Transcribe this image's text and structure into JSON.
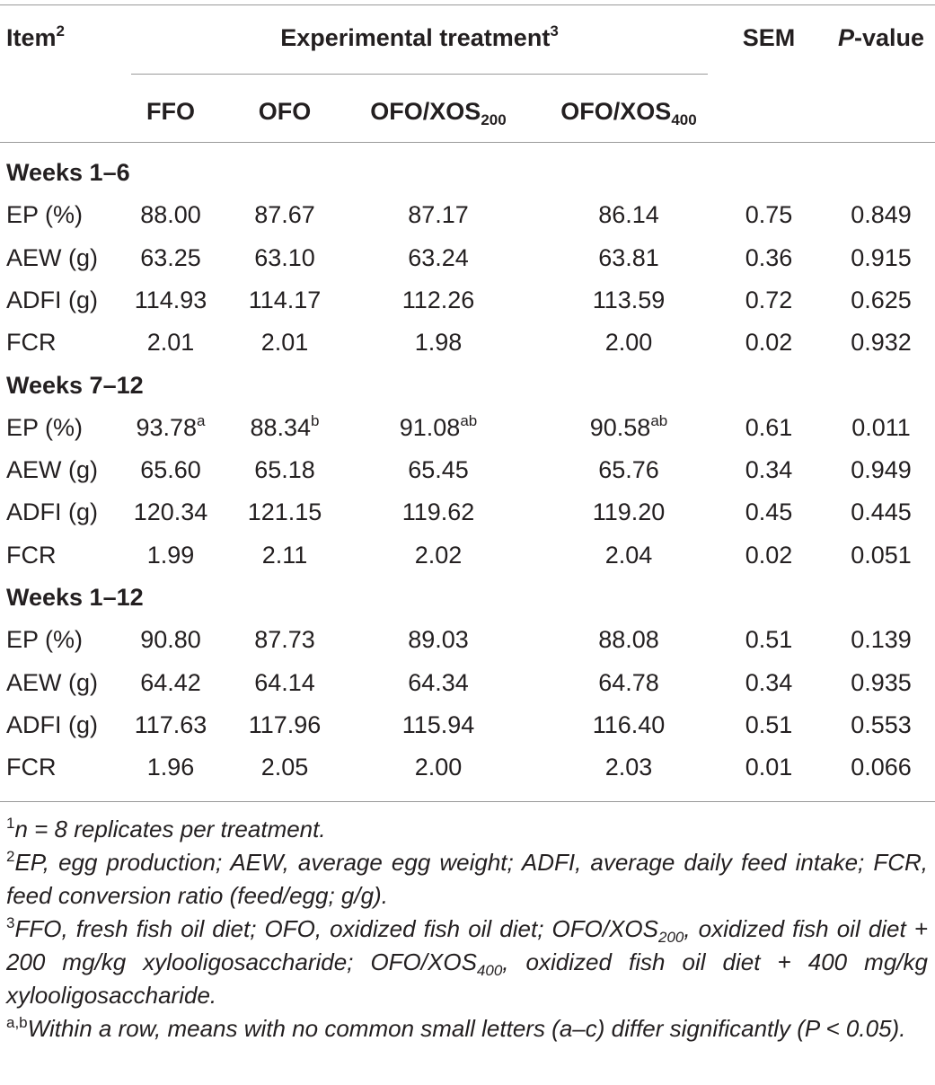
{
  "header": {
    "item_label": "Item",
    "item_sup": "2",
    "group_label": "Experimental treatment",
    "group_sup": "3",
    "sem_label": "SEM",
    "pvalue_italic": "P",
    "pvalue_rest": "-value",
    "treatments": [
      {
        "main": "FFO",
        "sub": ""
      },
      {
        "main": "OFO",
        "sub": ""
      },
      {
        "main": "OFO/XOS",
        "sub": "200"
      },
      {
        "main": "OFO/XOS",
        "sub": "400"
      }
    ]
  },
  "sections": [
    {
      "title": "Weeks 1–6",
      "rows": [
        {
          "item": "EP (%)",
          "values": [
            "88.00",
            "87.67",
            "87.17",
            "86.14"
          ],
          "sups": [
            "",
            "",
            "",
            ""
          ],
          "sem": "0.75",
          "p": "0.849"
        },
        {
          "item": "AEW (g)",
          "values": [
            "63.25",
            "63.10",
            "63.24",
            "63.81"
          ],
          "sups": [
            "",
            "",
            "",
            ""
          ],
          "sem": "0.36",
          "p": "0.915"
        },
        {
          "item": "ADFI (g)",
          "values": [
            "114.93",
            "114.17",
            "112.26",
            "113.59"
          ],
          "sups": [
            "",
            "",
            "",
            ""
          ],
          "sem": "0.72",
          "p": "0.625"
        },
        {
          "item": "FCR",
          "values": [
            "2.01",
            "2.01",
            "1.98",
            "2.00"
          ],
          "sups": [
            "",
            "",
            "",
            ""
          ],
          "sem": "0.02",
          "p": "0.932"
        }
      ]
    },
    {
      "title": "Weeks 7–12",
      "rows": [
        {
          "item": "EP (%)",
          "values": [
            "93.78",
            "88.34",
            "91.08",
            "90.58"
          ],
          "sups": [
            "a",
            "b",
            "ab",
            "ab"
          ],
          "sem": "0.61",
          "p": "0.011"
        },
        {
          "item": "AEW (g)",
          "values": [
            "65.60",
            "65.18",
            "65.45",
            "65.76"
          ],
          "sups": [
            "",
            "",
            "",
            ""
          ],
          "sem": "0.34",
          "p": "0.949"
        },
        {
          "item": "ADFI (g)",
          "values": [
            "120.34",
            "121.15",
            "119.62",
            "119.20"
          ],
          "sups": [
            "",
            "",
            "",
            ""
          ],
          "sem": "0.45",
          "p": "0.445"
        },
        {
          "item": "FCR",
          "values": [
            "1.99",
            "2.11",
            "2.02",
            "2.04"
          ],
          "sups": [
            "",
            "",
            "",
            ""
          ],
          "sem": "0.02",
          "p": "0.051"
        }
      ]
    },
    {
      "title": "Weeks 1–12",
      "rows": [
        {
          "item": "EP (%)",
          "values": [
            "90.80",
            "87.73",
            "89.03",
            "88.08"
          ],
          "sups": [
            "",
            "",
            "",
            ""
          ],
          "sem": "0.51",
          "p": "0.139"
        },
        {
          "item": "AEW (g)",
          "values": [
            "64.42",
            "64.14",
            "64.34",
            "64.78"
          ],
          "sups": [
            "",
            "",
            "",
            ""
          ],
          "sem": "0.34",
          "p": "0.935"
        },
        {
          "item": "ADFI (g)",
          "values": [
            "117.63",
            "117.96",
            "115.94",
            "116.40"
          ],
          "sups": [
            "",
            "",
            "",
            ""
          ],
          "sem": "0.51",
          "p": "0.553"
        },
        {
          "item": "FCR",
          "values": [
            "1.96",
            "2.05",
            "2.00",
            "2.03"
          ],
          "sups": [
            "",
            "",
            "",
            ""
          ],
          "sem": "0.01",
          "p": "0.066"
        }
      ]
    }
  ],
  "footnotes": [
    {
      "mark": "1",
      "parts": [
        {
          "t": "n = 8 replicates per treatment."
        }
      ]
    },
    {
      "mark": "2",
      "parts": [
        {
          "t": "EP, egg production; AEW, average egg weight; ADFI, average daily feed intake; FCR, feed conversion ratio (feed/egg; g/g)."
        }
      ]
    },
    {
      "mark": "3",
      "parts": [
        {
          "t": "FFO, fresh fish oil diet; OFO, oxidized fish oil diet; OFO/XOS"
        },
        {
          "sub": "200"
        },
        {
          "t": ", oxidized fish oil diet + 200 mg/kg xylooligosaccharide; OFO/XOS"
        },
        {
          "sub": "400"
        },
        {
          "t": ", oxidized fish oil diet + 400 mg/kg xylooligosaccharide."
        }
      ]
    },
    {
      "mark": "a,b",
      "parts": [
        {
          "t": "Within a row, means with no common small letters (a–c) differ significantly (P < 0.05)."
        }
      ]
    }
  ]
}
